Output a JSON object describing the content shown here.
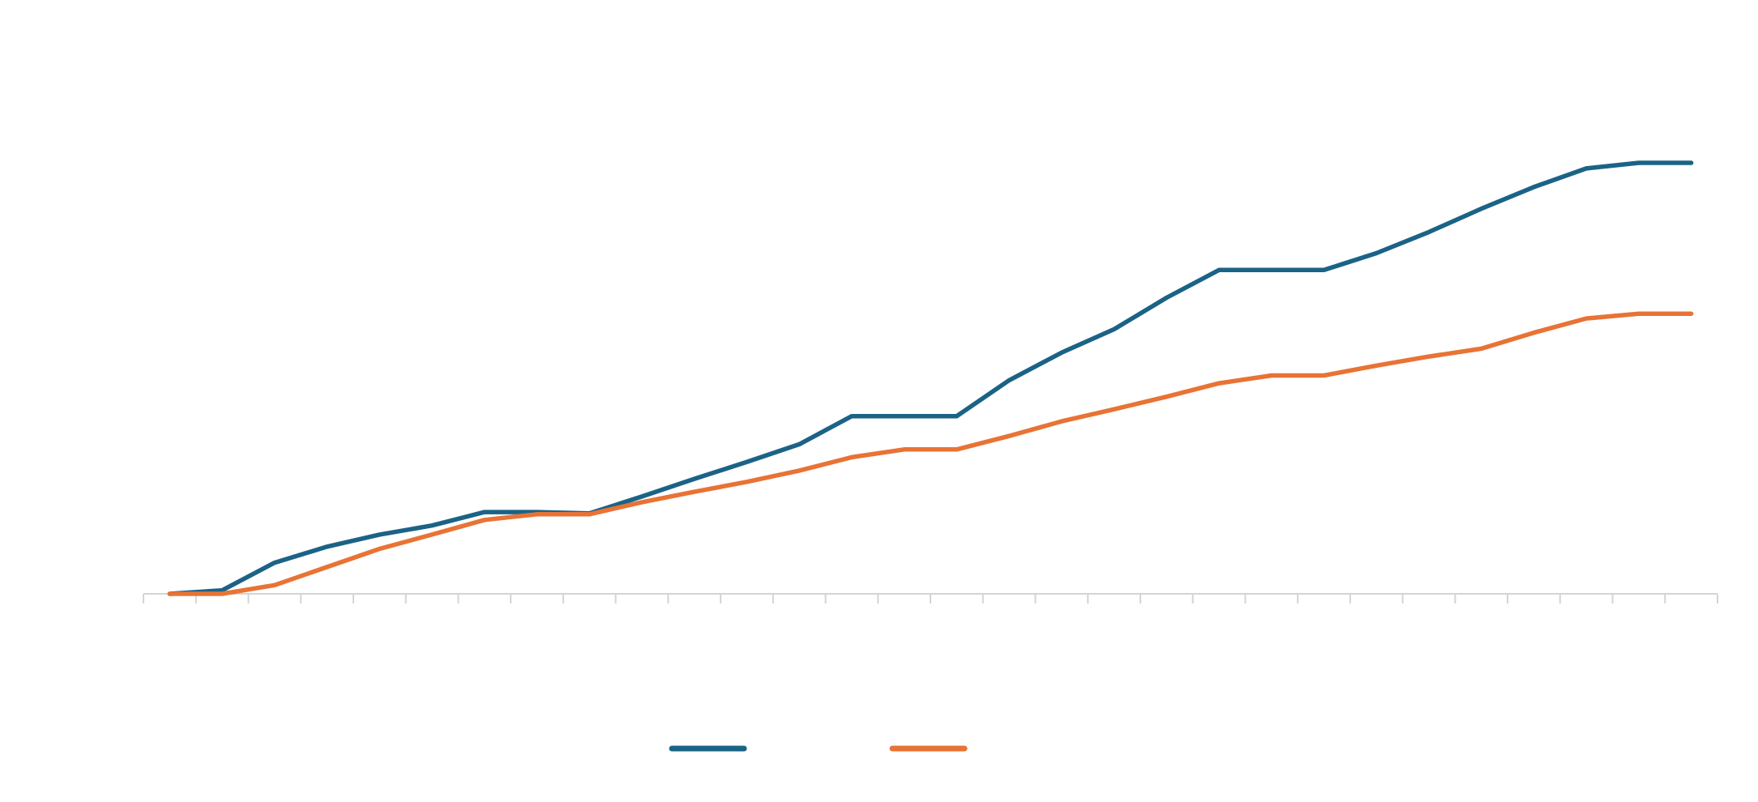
{
  "chart_data": {
    "type": "line",
    "categories": [
      null,
      null,
      null,
      null,
      null,
      null,
      null,
      null,
      null,
      null,
      null,
      null,
      null,
      null,
      null,
      null,
      null,
      null,
      null,
      null,
      null,
      null,
      null,
      null,
      null,
      null,
      null,
      null,
      null,
      null
    ],
    "series": [
      {
        "color": "#1b6386",
        "values": [
          0,
          0.8,
          7.2,
          10.9,
          13.7,
          15.8,
          18.9,
          18.9,
          18.6,
          22.5,
          26.6,
          30.5,
          34.6,
          41.1,
          41.1,
          41.1,
          49.4,
          55.8,
          61.2,
          68.5,
          74.9,
          74.9,
          74.9,
          78.8,
          83.7,
          89.1,
          94.1,
          98.4,
          99.7,
          99.7
        ]
      },
      {
        "color": "#e87335",
        "values": [
          0,
          0,
          2,
          6.2,
          10.4,
          13.7,
          17.1,
          18.4,
          18.4,
          21.2,
          23.6,
          25.9,
          28.5,
          31.6,
          33.4,
          33.4,
          36.5,
          39.9,
          42.7,
          45.6,
          48.7,
          50.5,
          50.5,
          52.8,
          54.9,
          56.7,
          60.4,
          63.7,
          64.8,
          64.8
        ]
      }
    ],
    "ylim": [
      0,
      125
    ]
  }
}
